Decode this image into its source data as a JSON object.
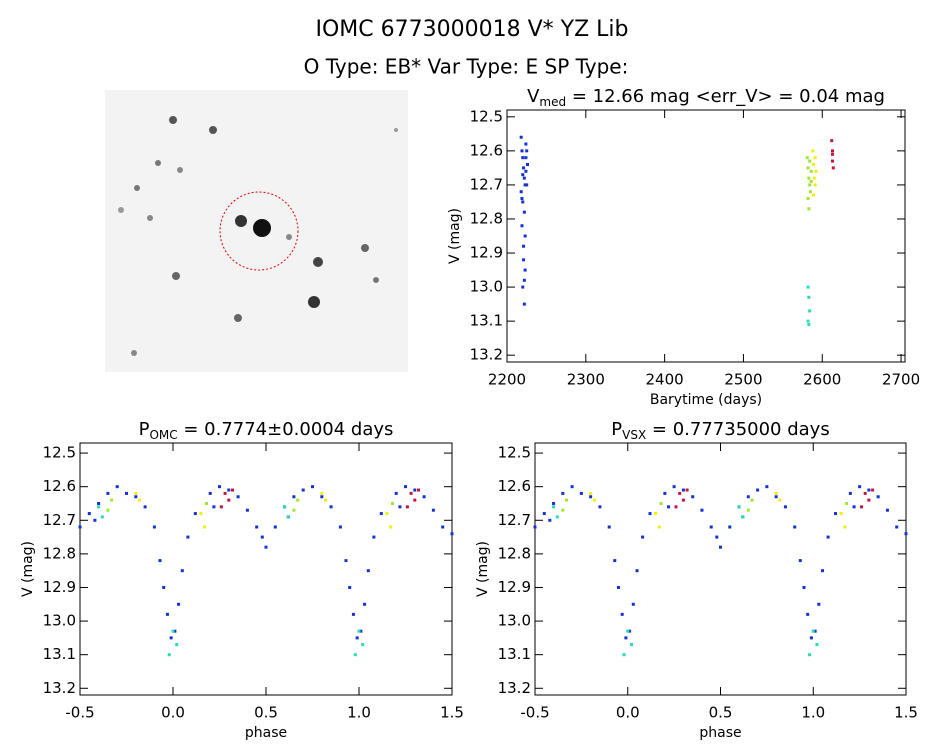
{
  "header": {
    "title": "IOMC 6773000018   V* YZ Lib",
    "subtitle": "O Type: EB*  Var Type: E  SP Type:"
  },
  "chart_data": [
    {
      "type": "scatter",
      "title": [
        "V",
        "med",
        " = 12.66 mag <err_V> = 0.04 mag"
      ],
      "xlabel": "Barytime (days)",
      "ylabel": "V (mag)",
      "xlim": [
        2200,
        2705
      ],
      "ylim": [
        13.22,
        12.48
      ],
      "xticks": [
        2200,
        2300,
        2400,
        2500,
        2600,
        2700
      ],
      "yticks": [
        12.5,
        12.6,
        12.7,
        12.8,
        12.9,
        {
          "value": 13,
          "label": "13.0"
        },
        13.1,
        13.2
      ],
      "series": [
        {
          "color": "#1432d2",
          "x": [
            2218,
            2219,
            2220,
            2221,
            2222,
            2223,
            2224,
            2225,
            2218,
            2220,
            2222,
            2224,
            2226,
            2219,
            2221,
            2223,
            2225,
            2220,
            2222,
            2224,
            2221,
            2223,
            2219,
            2222,
            2220
          ],
          "values": [
            12.56,
            12.6,
            12.62,
            12.65,
            12.68,
            12.7,
            12.62,
            12.6,
            12.72,
            12.75,
            12.78,
            12.66,
            12.64,
            12.82,
            12.88,
            12.95,
            12.7,
            13.0,
            13.05,
            12.58,
            12.92,
            12.85,
            12.74,
            12.98,
            12.67
          ]
        },
        {
          "color": "#a0e632",
          "x": [
            2581,
            2582,
            2583,
            2584,
            2585,
            2586,
            2582,
            2584,
            2586,
            2583
          ],
          "values": [
            12.62,
            12.65,
            12.68,
            12.7,
            12.72,
            12.66,
            12.74,
            12.63,
            12.69,
            12.77
          ]
        },
        {
          "color": "#f0f00a",
          "x": [
            2588,
            2589,
            2590,
            2591,
            2592,
            2589,
            2591
          ],
          "values": [
            12.6,
            12.64,
            12.68,
            12.7,
            12.66,
            12.73,
            12.62
          ]
        },
        {
          "color": "#28dcb4",
          "x": [
            2582,
            2583,
            2584,
            2582,
            2583
          ],
          "values": [
            13.0,
            13.03,
            13.07,
            13.1,
            13.11
          ]
        },
        {
          "color": "#c8143c",
          "x": [
            2612,
            2613,
            2613,
            2614,
            2613
          ],
          "values": [
            12.57,
            12.61,
            12.63,
            12.65,
            12.6
          ]
        }
      ]
    },
    {
      "type": "scatter",
      "title": [
        "P",
        "OMC",
        " = 0.7774±0.0004 days"
      ],
      "xlabel": "phase",
      "ylabel": "V (mag)",
      "xlim": [
        -0.5,
        1.5
      ],
      "ylim": [
        13.22,
        12.47
      ],
      "xticks": [
        -0.5,
        {
          "value": 0,
          "label": "0.0"
        },
        0.5,
        {
          "value": 1,
          "label": "1.0"
        },
        1.5
      ],
      "yticks": [
        12.5,
        12.6,
        12.7,
        12.8,
        12.9,
        {
          "value": 13,
          "label": "13.0"
        },
        13.1,
        13.2
      ],
      "series": [
        {
          "color": "#1432d2",
          "x": [
            -0.5,
            -0.45,
            -0.4,
            -0.35,
            -0.3,
            -0.25,
            -0.2,
            -0.15,
            -0.1,
            -0.07,
            -0.05,
            -0.03,
            -0.01,
            0.01,
            0.03,
            0.05,
            0.08,
            0.12,
            0.2,
            0.25,
            0.3,
            0.35,
            0.4,
            0.45,
            0.5,
            0.55,
            0.6,
            0.65,
            0.7,
            0.75,
            0.8,
            0.85,
            0.9,
            0.93,
            0.95,
            0.97,
            0.99,
            1.01,
            1.03,
            1.05,
            1.08,
            1.12,
            1.2,
            1.25,
            1.3,
            1.35,
            1.4,
            1.45,
            1.5,
            -0.42,
            0.22,
            0.62,
            1.22,
            0.48
          ],
          "values": [
            12.72,
            12.68,
            12.65,
            12.62,
            12.6,
            12.62,
            12.63,
            12.66,
            12.72,
            12.82,
            12.9,
            12.98,
            13.05,
            13.03,
            12.95,
            12.85,
            12.75,
            12.68,
            12.62,
            12.6,
            12.61,
            12.63,
            12.67,
            12.72,
            12.78,
            12.72,
            12.66,
            12.63,
            12.61,
            12.6,
            12.63,
            12.66,
            12.72,
            12.82,
            12.9,
            12.98,
            13.05,
            13.03,
            12.95,
            12.85,
            12.75,
            12.68,
            12.62,
            12.6,
            12.61,
            12.63,
            12.67,
            12.72,
            12.74,
            12.7,
            12.66,
            12.69,
            12.66,
            12.75
          ]
        },
        {
          "color": "#f0f00a",
          "x": [
            -0.2,
            -0.18,
            0.15,
            0.17,
            0.8,
            0.82,
            1.15,
            1.17
          ],
          "values": [
            12.62,
            12.64,
            12.68,
            12.72,
            12.62,
            12.64,
            12.68,
            12.72
          ]
        },
        {
          "color": "#a0e632",
          "x": [
            -0.35,
            -0.33,
            0.18,
            0.65,
            0.67,
            1.18
          ],
          "values": [
            12.67,
            12.64,
            12.65,
            12.67,
            12.64,
            12.65
          ]
        },
        {
          "color": "#28dcb4",
          "x": [
            -0.4,
            -0.38,
            0.0,
            0.02,
            -0.02,
            0.6,
            0.62,
            1.0,
            1.02,
            0.98
          ],
          "values": [
            12.66,
            12.69,
            13.03,
            13.07,
            13.1,
            12.66,
            12.69,
            13.03,
            13.07,
            13.1
          ]
        },
        {
          "color": "#c8143c",
          "x": [
            0.28,
            0.3,
            0.32,
            0.26,
            1.28,
            1.3,
            1.32,
            1.26
          ],
          "values": [
            12.62,
            12.64,
            12.61,
            12.66,
            12.62,
            12.64,
            12.61,
            12.66
          ]
        }
      ]
    },
    {
      "type": "scatter",
      "title": [
        "P",
        "VSX",
        " = 0.77735000 days"
      ],
      "xlabel": "phase",
      "ylabel": "V (mag)",
      "xlim": [
        -0.5,
        1.5
      ],
      "ylim": [
        13.22,
        12.47
      ],
      "xticks": [
        -0.5,
        {
          "value": 0,
          "label": "0.0"
        },
        0.5,
        {
          "value": 1,
          "label": "1.0"
        },
        1.5
      ],
      "yticks": [
        12.5,
        12.6,
        12.7,
        12.8,
        12.9,
        {
          "value": 13,
          "label": "13.0"
        },
        13.1,
        13.2
      ],
      "series": [
        {
          "color": "#1432d2",
          "x": [
            -0.5,
            -0.45,
            -0.4,
            -0.35,
            -0.3,
            -0.25,
            -0.2,
            -0.15,
            -0.1,
            -0.07,
            -0.05,
            -0.03,
            -0.01,
            0.01,
            0.03,
            0.05,
            0.08,
            0.12,
            0.2,
            0.25,
            0.3,
            0.35,
            0.4,
            0.45,
            0.5,
            0.55,
            0.6,
            0.65,
            0.7,
            0.75,
            0.8,
            0.85,
            0.9,
            0.93,
            0.95,
            0.97,
            0.99,
            1.01,
            1.03,
            1.05,
            1.08,
            1.12,
            1.2,
            1.25,
            1.3,
            1.35,
            1.4,
            1.45,
            1.5,
            -0.42,
            0.22,
            0.62,
            1.22,
            0.48
          ],
          "values": [
            12.72,
            12.68,
            12.65,
            12.62,
            12.6,
            12.62,
            12.63,
            12.66,
            12.72,
            12.82,
            12.9,
            12.98,
            13.05,
            13.03,
            12.95,
            12.85,
            12.75,
            12.68,
            12.62,
            12.6,
            12.61,
            12.63,
            12.67,
            12.72,
            12.78,
            12.72,
            12.66,
            12.63,
            12.61,
            12.6,
            12.63,
            12.66,
            12.72,
            12.82,
            12.9,
            12.98,
            13.05,
            13.03,
            12.95,
            12.85,
            12.75,
            12.68,
            12.62,
            12.6,
            12.61,
            12.63,
            12.67,
            12.72,
            12.74,
            12.7,
            12.66,
            12.69,
            12.66,
            12.75
          ]
        },
        {
          "color": "#f0f00a",
          "x": [
            -0.2,
            -0.18,
            0.15,
            0.17,
            0.8,
            0.82,
            1.15,
            1.17
          ],
          "values": [
            12.62,
            12.64,
            12.68,
            12.72,
            12.62,
            12.64,
            12.68,
            12.72
          ]
        },
        {
          "color": "#a0e632",
          "x": [
            -0.35,
            -0.33,
            0.18,
            0.65,
            0.67,
            1.18
          ],
          "values": [
            12.67,
            12.64,
            12.65,
            12.67,
            12.64,
            12.65
          ]
        },
        {
          "color": "#28dcb4",
          "x": [
            -0.4,
            -0.38,
            0.0,
            0.02,
            -0.02,
            0.6,
            0.62,
            1.0,
            1.02,
            0.98
          ],
          "values": [
            12.66,
            12.69,
            13.03,
            13.07,
            13.1,
            12.66,
            12.69,
            13.03,
            13.07,
            13.1
          ]
        },
        {
          "color": "#c8143c",
          "x": [
            0.28,
            0.3,
            0.32,
            0.26,
            1.28,
            1.3,
            1.32,
            1.26
          ],
          "values": [
            12.62,
            12.64,
            12.61,
            12.66,
            12.62,
            12.64,
            12.61,
            12.66
          ]
        }
      ]
    }
  ]
}
